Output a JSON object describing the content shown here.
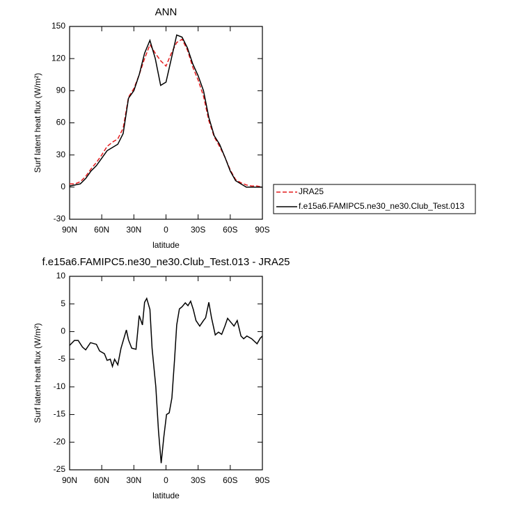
{
  "chart_data": [
    {
      "type": "line",
      "title": "ANN",
      "xlabel": "latitude",
      "ylabel": "Surf latent heat flux (W/m²)",
      "x": [
        90,
        85,
        80,
        75,
        70,
        65,
        60,
        55,
        50,
        45,
        40,
        35,
        30,
        25,
        20,
        15,
        10,
        5,
        0,
        -5,
        -10,
        -15,
        -20,
        -25,
        -30,
        -35,
        -40,
        -45,
        -50,
        -55,
        -60,
        -65,
        -70,
        -75,
        -80,
        -85,
        -90
      ],
      "series": [
        {
          "name": "JRA25",
          "color": "#e41a1c",
          "linestyle": "dashed",
          "values": [
            3,
            3,
            5,
            10,
            17,
            23,
            30,
            38,
            42,
            45,
            55,
            84,
            92,
            105,
            120,
            133,
            125,
            118,
            113,
            125,
            135,
            138,
            128,
            112,
            100,
            85,
            62,
            47,
            38,
            28,
            16,
            7,
            4,
            2,
            1,
            1,
            0
          ]
        },
        {
          "name": "f.e15a6.FAMIPC5.ne30_ne30.Club_Test.013",
          "color": "#000000",
          "linestyle": "solid",
          "values": [
            1,
            2,
            3,
            8,
            15,
            20,
            27,
            34,
            37,
            40,
            50,
            83,
            90,
            105,
            125,
            137,
            120,
            95,
            98,
            120,
            142,
            140,
            130,
            115,
            104,
            90,
            65,
            48,
            40,
            28,
            15,
            6,
            3,
            0,
            0,
            0,
            0
          ]
        }
      ],
      "xlim": [
        90,
        -90
      ],
      "xticks": [
        {
          "value": 90,
          "label": "90N"
        },
        {
          "value": 60,
          "label": "60N"
        },
        {
          "value": 30,
          "label": "30N"
        },
        0,
        {
          "value": -30,
          "label": "30S"
        },
        {
          "value": -60,
          "label": "60S"
        },
        {
          "value": -90,
          "label": "90S"
        }
      ],
      "ylim": [
        -30,
        150
      ],
      "yticks": [
        -30,
        0,
        30,
        60,
        90,
        120,
        150
      ],
      "legend": "outside-right"
    },
    {
      "type": "line",
      "title": "f.e15a6.FAMIPC5.ne30_ne30.Club_Test.013 - JRA25",
      "xlabel": "latitude",
      "ylabel": "Surf latent heat flux (W/m²)",
      "x": [
        90,
        85.5,
        82,
        78,
        75,
        70.5,
        65,
        62,
        57.5,
        55,
        52,
        50,
        48,
        45,
        42,
        37,
        35,
        32,
        28,
        25,
        22,
        20,
        18,
        15,
        13,
        9.5,
        7,
        4.5,
        2,
        -0.5,
        -3,
        -5.5,
        -8,
        -10,
        -12.5,
        -15,
        -18,
        -20.5,
        -23,
        -25.5,
        -28,
        -31.5,
        -35,
        -37,
        -40,
        -42.5,
        -46,
        -49,
        -52,
        -55,
        -57.5,
        -60.5,
        -63.5,
        -66.5,
        -70,
        -72.5,
        -75.5,
        -80,
        -85,
        -88,
        -90
      ],
      "series": [
        {
          "color": "#000000",
          "linestyle": "solid",
          "values": [
            -2.5,
            -1.6,
            -1.6,
            -2.8,
            -3.3,
            -2.0,
            -2.3,
            -3.5,
            -4.0,
            -5.2,
            -5.0,
            -6.3,
            -5.0,
            -6.0,
            -3.0,
            0.3,
            -1.5,
            -3.0,
            -3.2,
            2.9,
            1.2,
            5.3,
            6.0,
            4.0,
            -3,
            -10,
            -18,
            -23.8,
            -19,
            -15,
            -14.7,
            -12,
            -5,
            1.2,
            4.1,
            4.5,
            5.2,
            4.7,
            5.5,
            4.0,
            2.0,
            1.0,
            2.0,
            2.5,
            5.3,
            2.5,
            -0.6,
            -0.1,
            -0.5,
            1.0,
            2.4,
            1.7,
            1.0,
            2.0,
            -0.8,
            -1.3,
            -0.8,
            -1.3,
            -2.2,
            -1.2,
            -0.8
          ]
        }
      ],
      "xlim": [
        90,
        -90
      ],
      "xticks": [
        {
          "value": 90,
          "label": "90N"
        },
        {
          "value": 60,
          "label": "60N"
        },
        {
          "value": 30,
          "label": "30N"
        },
        0,
        {
          "value": -30,
          "label": "30S"
        },
        {
          "value": -60,
          "label": "60S"
        },
        {
          "value": -90,
          "label": "90S"
        }
      ],
      "ylim": [
        -25,
        10
      ],
      "yticks": [
        -25,
        -20,
        -15,
        -10,
        -5,
        0,
        5,
        10
      ]
    }
  ]
}
